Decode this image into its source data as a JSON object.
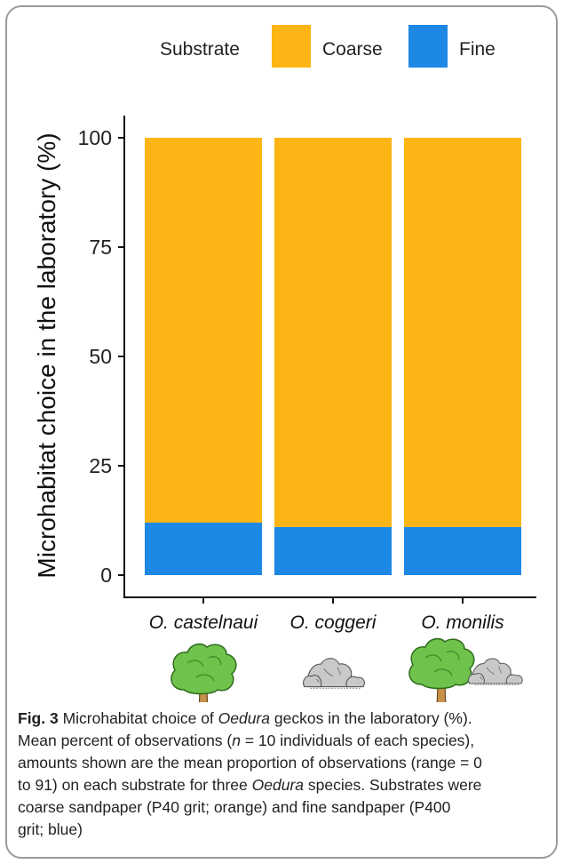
{
  "chart_data": {
    "type": "bar",
    "stacked": true,
    "categories": [
      "O. castelnaui",
      "O. coggeri",
      "O. monilis"
    ],
    "series": [
      {
        "name": "Fine",
        "values": [
          12,
          11,
          11
        ],
        "color": "#1e88e5"
      },
      {
        "name": "Coarse",
        "values": [
          88,
          89,
          89
        ],
        "color": "#fdb515"
      }
    ],
    "ylabel": "Microhabitat choice in the laboratory (%)",
    "ylim": [
      0,
      100
    ],
    "yticks": [
      0,
      25,
      50,
      75,
      100
    ],
    "grid": false,
    "legend": {
      "title": "Substrate",
      "placement": "top",
      "entries": [
        {
          "label": "Coarse",
          "color": "#fdb515"
        },
        {
          "label": "Fine",
          "color": "#1e88e5"
        }
      ]
    },
    "category_icons": [
      [
        "tree-icon"
      ],
      [
        "rocks-icon"
      ],
      [
        "tree-icon",
        "rocks-icon"
      ]
    ]
  },
  "caption": {
    "fig_label": "Fig. 3",
    "line1_a": " Microhabitat choice of ",
    "genus": "Oedura",
    "line1_b": " geckos in the laboratory (%).",
    "line2_a": "Mean percent of observations (",
    "n_symbol": "n",
    "line2_b": " = 10 individuals of each species),",
    "line3": "amounts shown are the mean proportion of observations (range = 0",
    "line4_a": "to 91) on each substrate for three ",
    "line4_b": " species. Substrates were",
    "line5": "coarse sandpaper (P40 grit; orange) and fine sandpaper (P400",
    "line6": "grit; blue)"
  }
}
